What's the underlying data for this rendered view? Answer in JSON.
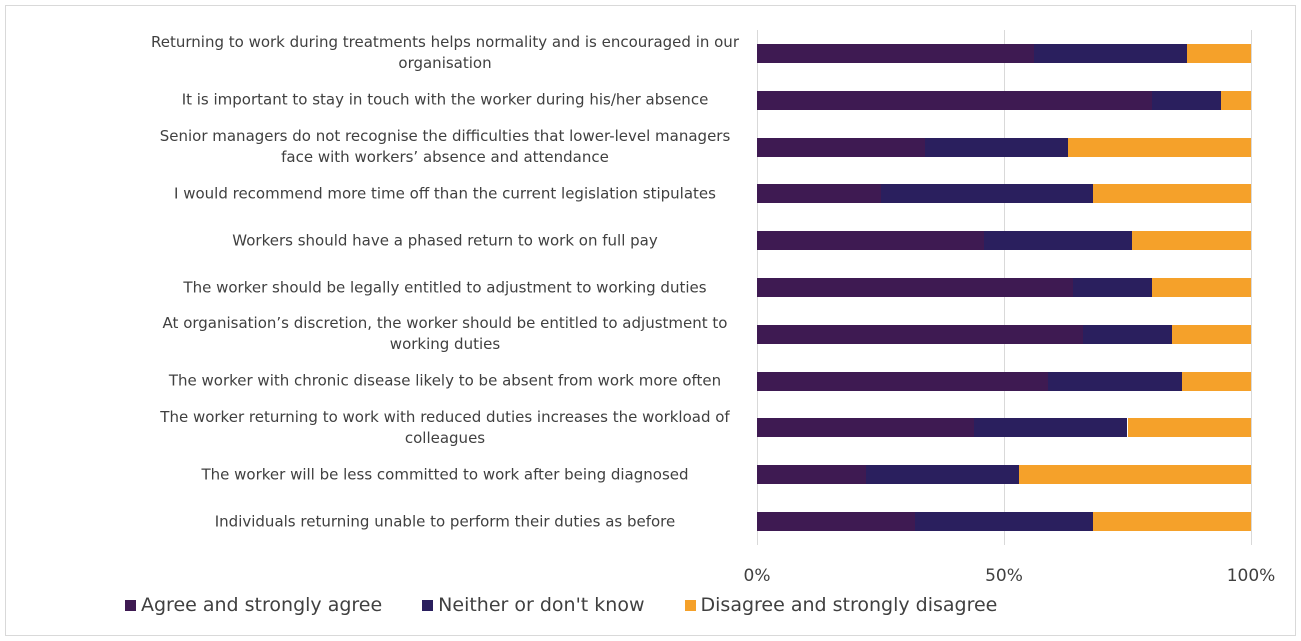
{
  "chart_data": {
    "type": "stacked-bar-horizontal",
    "categories": [
      "Returning to work during treatments helps normality and is encouraged in our organisation",
      "It is important to stay in touch with the worker during his/her absence",
      "Senior managers do not recognise the difficulties that lower-level managers face with workers’ absence and attendance",
      "I would recommend more time off than the current legislation stipulates",
      "Workers should have a phased return to work on full pay",
      "The worker should be legally entitled to adjustment to working duties",
      "At organisation’s discretion, the worker should be entitled to adjustment to working duties",
      "The worker with chronic disease likely to be absent from work more often",
      "The worker returning to work with reduced duties increases the workload of colleagues",
      "The worker will be less committed to work after being diagnosed",
      "Individuals returning  unable to perform their duties as before"
    ],
    "series": [
      {
        "name": "Agree and strongly agree",
        "color": "#3e1a52",
        "values": [
          56,
          80,
          34,
          25,
          46,
          64,
          66,
          59,
          44,
          22,
          32
        ]
      },
      {
        "name": "Neither or don't know",
        "color": "#2a1f5e",
        "values": [
          31,
          14,
          29,
          43,
          30,
          16,
          18,
          27,
          31,
          31,
          36
        ]
      },
      {
        "name": "Disagree and strongly disagree",
        "color": "#f5a12a",
        "values": [
          13,
          6,
          37,
          32,
          24,
          20,
          16,
          14,
          25,
          47,
          32
        ]
      }
    ],
    "xlim": [
      0,
      100
    ],
    "xticks": [
      {
        "value": 0,
        "label": "0%"
      },
      {
        "value": 50,
        "label": "50%"
      },
      {
        "value": 100,
        "label": "100%"
      }
    ],
    "grid": true,
    "legend": "bottom"
  }
}
